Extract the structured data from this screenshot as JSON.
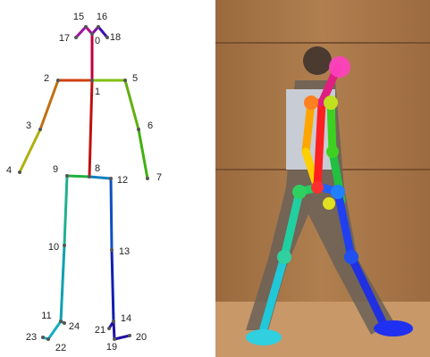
{
  "nodes": [
    {
      "label": "0"
    },
    {
      "label": "1"
    },
    {
      "label": "2"
    },
    {
      "label": "3"
    },
    {
      "label": "4"
    },
    {
      "label": "5"
    },
    {
      "label": "6"
    },
    {
      "label": "7"
    },
    {
      "label": "8"
    },
    {
      "label": "9"
    },
    {
      "label": "10"
    },
    {
      "label": "11"
    },
    {
      "label": "12"
    },
    {
      "label": "13"
    },
    {
      "label": "14"
    },
    {
      "label": "15"
    },
    {
      "label": "16"
    },
    {
      "label": "17"
    },
    {
      "label": "18"
    },
    {
      "label": "19"
    },
    {
      "label": "20"
    },
    {
      "label": "21"
    },
    {
      "label": "22"
    },
    {
      "label": "23"
    },
    {
      "label": "24"
    }
  ]
}
